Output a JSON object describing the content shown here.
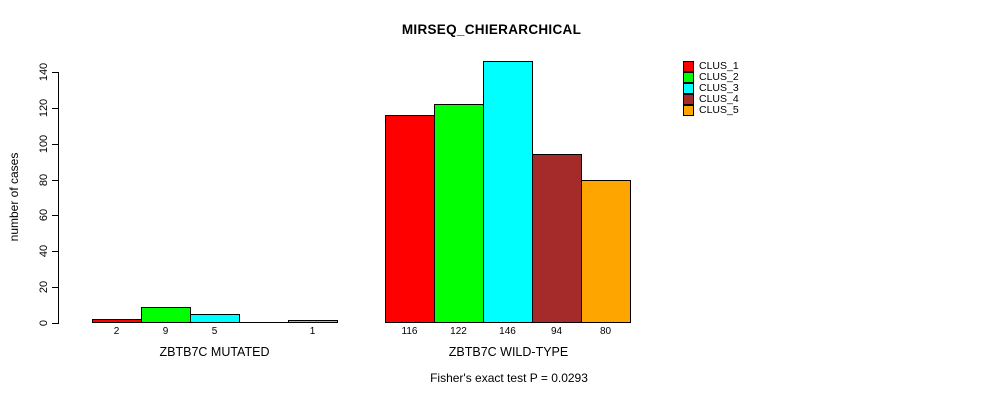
{
  "chart_data": {
    "type": "bar",
    "title": "MIRSEQ_CHIERARCHICAL",
    "ylabel": "number of cases",
    "xlabel": "",
    "ylim": [
      0,
      140
    ],
    "yticks": [
      0,
      20,
      40,
      60,
      80,
      100,
      120,
      140
    ],
    "grid": false,
    "legend_position": "top-right",
    "bar_border_color": "#000000",
    "background_color": "#ffffff",
    "groups": [
      {
        "label": "ZBTB7C MUTATED",
        "bar_labels": [
          "2",
          "9",
          "5",
          "",
          "1"
        ]
      },
      {
        "label": "ZBTB7C WILD-TYPE",
        "bar_labels": [
          "116",
          "122",
          "146",
          "94",
          "80"
        ]
      }
    ],
    "series": [
      {
        "name": "CLUS_1",
        "color": "#FF0000",
        "values": [
          2,
          116
        ]
      },
      {
        "name": "CLUS_2",
        "color": "#00FF00",
        "values": [
          9,
          122
        ]
      },
      {
        "name": "CLUS_3",
        "color": "#00FFFF",
        "values": [
          5,
          146
        ]
      },
      {
        "name": "CLUS_4",
        "color": "#A52A2A",
        "values": [
          0,
          94
        ]
      },
      {
        "name": "CLUS_5",
        "color": "#FFA500",
        "values": [
          1,
          80
        ]
      }
    ],
    "annotation": "Fisher's exact test P = 0.0293"
  }
}
